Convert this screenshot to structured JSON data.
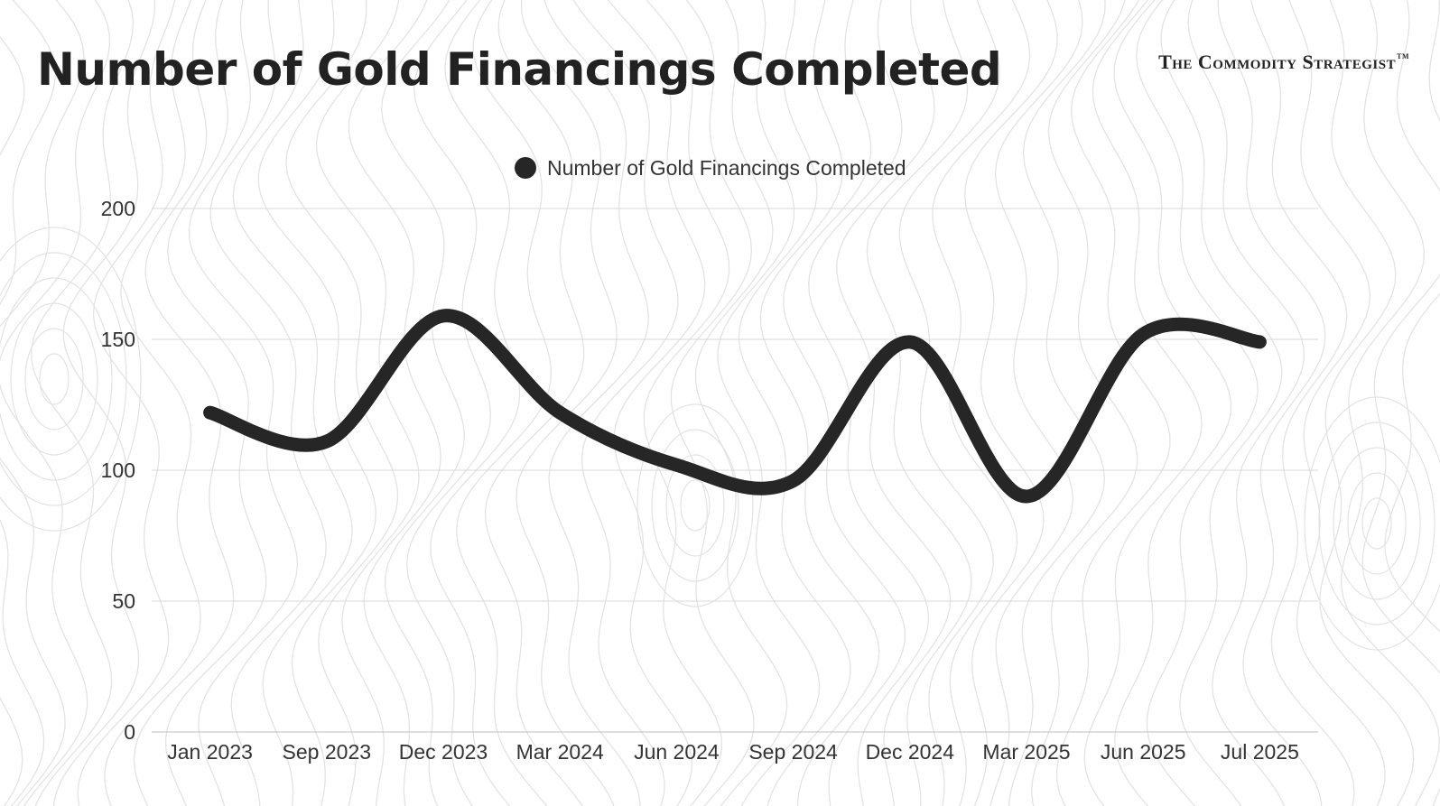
{
  "header": {
    "title": "Number of Gold Financings Completed",
    "brand": "The Commodity Strategist",
    "brand_mark": "TM"
  },
  "colors": {
    "line": "#262626",
    "grid": "#d9d9d9",
    "text": "#333333",
    "contour": "#e3e3e3"
  },
  "chart_data": {
    "type": "line",
    "title": "Number of Gold Financings Completed",
    "xlabel": "",
    "ylabel": "",
    "ylim": [
      0,
      200
    ],
    "yticks": [
      0,
      50,
      100,
      150,
      200
    ],
    "grid": true,
    "legend_position": "top-center",
    "categories": [
      "Jan 2023",
      "Sep 2023",
      "Dec 2023",
      "Mar 2024",
      "Jun 2024",
      "Sep 2024",
      "Dec 2024",
      "Mar 2025",
      "Jun 2025",
      "Jul 2025"
    ],
    "series": [
      {
        "name": "Number of Gold Financings Completed",
        "values": [
          122,
          111,
          159,
          122,
          102,
          96,
          149,
          90,
          152,
          149
        ]
      }
    ]
  }
}
